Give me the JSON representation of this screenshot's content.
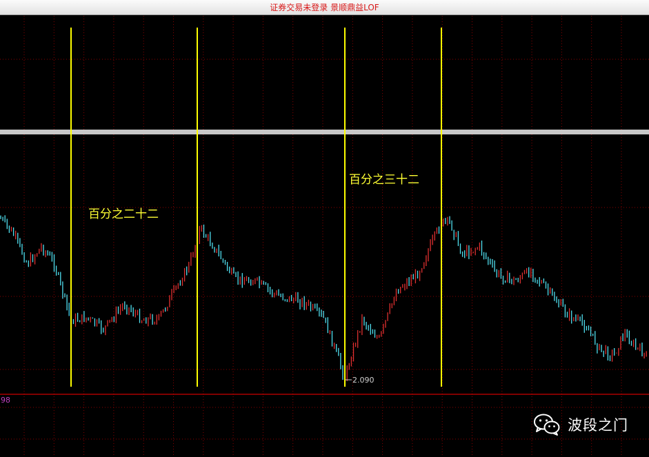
{
  "window": {
    "title": "证券交易未登录  景顺鼎益LOF"
  },
  "chart": {
    "annotations": [
      {
        "text": "百分之二十二"
      },
      {
        "text": "百分之三十二"
      }
    ],
    "low_price_label": "2.090",
    "indicator_value": "98",
    "colors": {
      "background": "#000000",
      "grid": "#8b0000",
      "up_candle": "#e03030",
      "down_candle": "#50e0f0",
      "marker_line": "#ffff00",
      "separator": "#c8c8c8",
      "indicator_divider": "#ff0000"
    }
  },
  "watermark": {
    "icon": "wechat-icon",
    "text": "波段之门"
  }
}
